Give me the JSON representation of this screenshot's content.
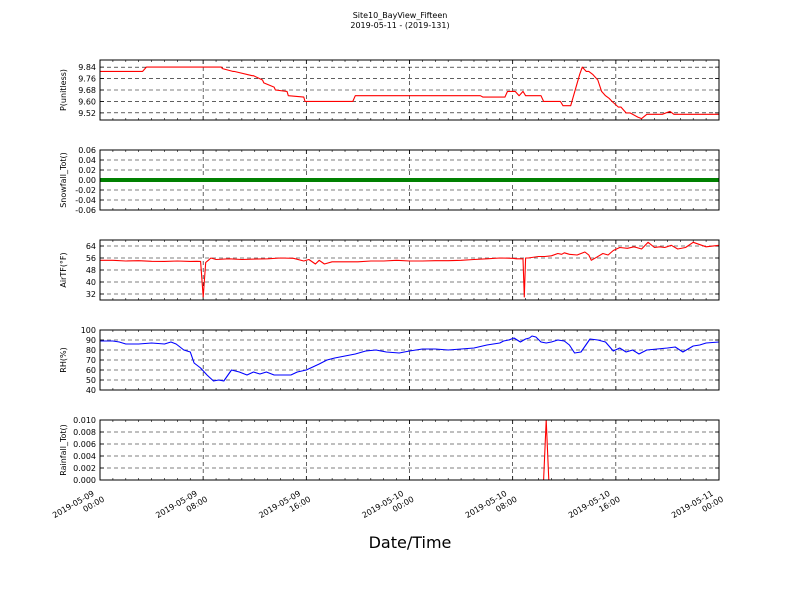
{
  "title": "Site10_BayView_Fifteen",
  "subtitle": "2019-05-11 - (2019-131)",
  "xlabel": "Date/Time",
  "x_ticks": [
    "2019-05-09\n00:00",
    "2019-05-09\n08:00",
    "2019-05-09\n16:00",
    "2019-05-10\n00:00",
    "2019-05-10\n08:00",
    "2019-05-10\n16:00",
    "2019-05-11\n00:00"
  ],
  "chart_data": [
    {
      "type": "line",
      "ylabel": "P(unitless)",
      "color": "#ff0000",
      "ylim": [
        9.47,
        9.89
      ],
      "yticks": [
        "9.84",
        "9.76",
        "9.68",
        "9.60",
        "9.52"
      ],
      "ytick_values": [
        9.84,
        9.76,
        9.68,
        9.6,
        9.52
      ],
      "xlim_hours": [
        0,
        48
      ],
      "x_hours": [
        0,
        3.3,
        3.6,
        7.5,
        9.4,
        9.5,
        10.3,
        10.4,
        11.8,
        11.9,
        12.6,
        12.7,
        13.5,
        13.6,
        14.5,
        14.6,
        15.8,
        15.9,
        19.6,
        19.8,
        29.5,
        29.7,
        31.4,
        31.6,
        32.2,
        32.5,
        32.8,
        33.0,
        34.2,
        34.4,
        35.7,
        35.9,
        36.5,
        37.2,
        37.4,
        37.7,
        37.9,
        38.2,
        38.4,
        38.6,
        38.9,
        39.2,
        39.5,
        39.7,
        40.2,
        40.4,
        40.8,
        41.1,
        41.7,
        42.0,
        42.4,
        42.6,
        43.4,
        43.6,
        44.2,
        44.5,
        45.4,
        45.6,
        46.2,
        46.5,
        48.0
      ],
      "values": [
        9.81,
        9.81,
        9.84,
        9.84,
        9.84,
        9.83,
        9.81,
        9.81,
        9.78,
        9.78,
        9.75,
        9.73,
        9.7,
        9.68,
        9.67,
        9.64,
        9.63,
        9.6,
        9.6,
        9.64,
        9.64,
        9.63,
        9.63,
        9.67,
        9.67,
        9.64,
        9.67,
        9.64,
        9.64,
        9.6,
        9.6,
        9.57,
        9.57,
        9.79,
        9.84,
        9.81,
        9.81,
        9.79,
        9.77,
        9.75,
        9.67,
        9.64,
        9.62,
        9.6,
        9.56,
        9.56,
        9.52,
        9.52,
        9.49,
        9.48,
        9.51,
        9.51,
        9.51,
        9.51,
        9.53,
        9.51,
        9.51,
        9.51,
        9.51,
        9.51,
        9.51
      ]
    },
    {
      "type": "line",
      "ylabel": "Snowfall_Tot()",
      "color": "#008000",
      "ylim": [
        -0.06,
        0.06
      ],
      "yticks": [
        "0.06",
        "0.04",
        "0.02",
        "0.00",
        "-0.02",
        "-0.04",
        "-0.06"
      ],
      "ytick_values": [
        0.06,
        0.04,
        0.02,
        0.0,
        -0.02,
        -0.04,
        -0.06
      ],
      "xlim_hours": [
        0,
        48
      ],
      "x_hours": [
        0,
        48
      ],
      "values": [
        0.0,
        0.0
      ]
    },
    {
      "type": "line",
      "ylabel": "AirTF(°F)",
      "color": "#ff0000",
      "ylim": [
        28,
        68
      ],
      "yticks": [
        "64",
        "56",
        "48",
        "40",
        "32"
      ],
      "ytick_values": [
        64,
        56,
        48,
        40,
        32
      ],
      "xlim_hours": [
        0,
        48
      ],
      "x_hours": [
        0,
        1,
        2,
        3,
        4,
        5,
        6,
        7,
        7.5,
        7.8,
        8.0,
        8.2,
        8.4,
        8.6,
        9,
        10,
        11,
        12,
        13,
        14,
        15,
        15.8,
        16.2,
        16.7,
        17.0,
        17.4,
        18,
        19,
        20,
        21,
        22,
        23,
        24,
        25,
        26,
        27,
        28,
        29,
        30,
        31,
        32,
        32.3,
        32.8,
        32.9,
        33.0,
        33.2,
        34,
        34.5,
        35,
        35.5,
        35.8,
        36.0,
        36.4,
        37,
        37.6,
        37.9,
        38.1,
        38.5,
        39,
        39.4,
        39.8,
        40.3,
        40.9,
        41.4,
        42,
        42.5,
        43,
        43.4,
        43.8,
        44.3,
        44.8,
        45.4,
        46,
        47,
        48
      ],
      "values": [
        54.5,
        54.5,
        54.0,
        54.2,
        53.8,
        53.7,
        54.0,
        53.7,
        53.8,
        53.7,
        30.0,
        53.0,
        54.5,
        56.0,
        55.0,
        55.5,
        55.0,
        55.3,
        55.5,
        56.0,
        55.8,
        54.0,
        55.0,
        52.0,
        54.5,
        52.0,
        53.5,
        53.5,
        53.5,
        54.0,
        54.0,
        54.5,
        54.0,
        54.0,
        54.2,
        54.2,
        54.5,
        55.0,
        55.5,
        56.0,
        55.8,
        55.5,
        55.5,
        30.0,
        56.0,
        56.0,
        57.0,
        57.0,
        57.5,
        59.0,
        58.5,
        59.5,
        58.5,
        58.0,
        60.0,
        58.0,
        54.5,
        56.5,
        59.0,
        58.0,
        61.0,
        63.0,
        62.5,
        63.5,
        62.0,
        66.5,
        63.0,
        63.5,
        63.0,
        64.5,
        62.0,
        63.0,
        66.5,
        63.5,
        64.5
      ]
    },
    {
      "type": "line",
      "ylabel": "RH(%)",
      "color": "#0000ff",
      "ylim": [
        40,
        100
      ],
      "yticks": [
        "100",
        "90",
        "80",
        "70",
        "60",
        "50",
        "40"
      ],
      "ytick_values": [
        100,
        90,
        80,
        70,
        60,
        50,
        40
      ],
      "xlim_hours": [
        0,
        48
      ],
      "x_hours": [
        0,
        1,
        1.5,
        2,
        3,
        4,
        5,
        5.5,
        5.9,
        6.2,
        6.5,
        7.0,
        7.3,
        7.8,
        8.3,
        8.8,
        9.2,
        9.6,
        10.2,
        10.8,
        11.4,
        11.9,
        12.4,
        12.9,
        13.5,
        14.2,
        14.8,
        15.3,
        16,
        17,
        17.6,
        18.2,
        19,
        19.8,
        20.6,
        21.4,
        22.2,
        23.2,
        24,
        25,
        26,
        27,
        28,
        29,
        30,
        31,
        31.3,
        31.7,
        32.1,
        32.6,
        33.0,
        33.3,
        33.5,
        33.8,
        34.2,
        34.6,
        35,
        35.5,
        36,
        36.4,
        36.8,
        37.3,
        38,
        38.6,
        39.2,
        39.8,
        40.3,
        40.8,
        41.3,
        41.8,
        42.4,
        43.2,
        44,
        44.6,
        45.2,
        46,
        46.5,
        47,
        48
      ],
      "values": [
        89,
        89,
        88,
        86,
        86,
        87,
        86,
        88,
        86,
        83,
        80,
        78,
        67,
        62,
        55,
        49,
        50,
        49,
        60,
        58,
        55,
        58,
        56,
        58,
        55,
        55,
        55,
        58,
        60,
        66,
        70,
        72,
        74,
        76,
        79,
        80,
        78,
        77,
        79,
        81,
        81,
        80,
        81,
        82,
        85,
        87,
        89,
        90,
        92,
        88,
        91,
        92,
        94,
        93,
        88,
        87,
        88,
        90,
        89,
        85,
        77,
        78,
        91,
        90,
        88,
        79,
        82,
        78,
        80,
        76,
        80,
        81,
        82,
        83,
        78,
        84,
        85,
        87,
        88
      ]
    },
    {
      "type": "line",
      "ylabel": "Rainfall_Tot()",
      "color": "#ff0000",
      "ylim": [
        0,
        0.01
      ],
      "yticks": [
        "0.010",
        "0.008",
        "0.006",
        "0.004",
        "0.002",
        "0.000"
      ],
      "ytick_values": [
        0.01,
        0.008,
        0.006,
        0.004,
        0.002,
        0.0
      ],
      "xlim_hours": [
        0,
        48
      ],
      "x_hours": [
        0,
        34.4,
        34.6,
        34.8,
        48
      ],
      "values": [
        0,
        0,
        0.01,
        0,
        0
      ]
    }
  ]
}
